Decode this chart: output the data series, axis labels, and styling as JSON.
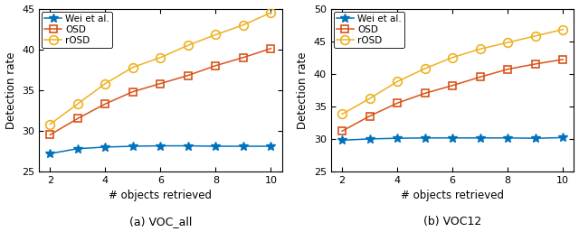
{
  "x": [
    2,
    3,
    4,
    5,
    6,
    7,
    8,
    9,
    10
  ],
  "voc_all": {
    "wei": [
      27.2,
      27.8,
      28.0,
      28.1,
      28.15,
      28.15,
      28.1,
      28.1,
      28.1
    ],
    "osd": [
      29.5,
      31.5,
      33.3,
      34.8,
      35.8,
      36.8,
      38.0,
      39.0,
      40.1
    ],
    "rosd": [
      30.8,
      33.3,
      35.8,
      37.8,
      39.0,
      40.5,
      41.8,
      43.0,
      44.5
    ]
  },
  "voc12": {
    "wei": [
      29.8,
      30.0,
      30.1,
      30.15,
      30.15,
      30.15,
      30.15,
      30.1,
      30.2
    ],
    "osd": [
      31.2,
      33.5,
      35.5,
      37.0,
      38.2,
      39.5,
      40.7,
      41.5,
      42.2
    ],
    "rosd": [
      33.8,
      36.2,
      38.8,
      40.8,
      42.5,
      43.8,
      44.8,
      45.8,
      46.8
    ]
  },
  "wei_color": "#0072BD",
  "osd_color": "#D95319",
  "rosd_color": "#EDB120",
  "ylim_left": [
    25,
    45
  ],
  "ylim_right": [
    25,
    50
  ],
  "yticks_left": [
    25,
    30,
    35,
    40,
    45
  ],
  "yticks_right": [
    25,
    30,
    35,
    40,
    45,
    50
  ],
  "xticks": [
    2,
    4,
    6,
    8,
    10
  ],
  "xlabel": "# objects retrieved",
  "ylabel": "Detection rate",
  "title_left": "(a) VOC_all",
  "title_right": "(b) VOC12"
}
